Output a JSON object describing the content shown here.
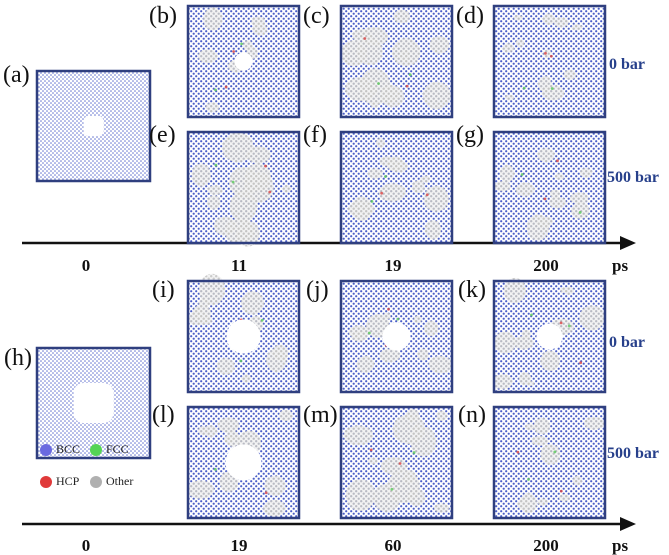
{
  "colors": {
    "frame": "#2f3f7f",
    "bcc_atom": "#4a5ec8",
    "other_atom": "#c8c8c8",
    "fcc_atom": "#58c858",
    "hcp_atom": "#d84040",
    "pressure_text": "#27408b"
  },
  "top_row": {
    "initial_label": "(a)",
    "panels": [
      "(b)",
      "(c)",
      "(d)",
      "(e)",
      "(f)",
      "(g)"
    ],
    "pressure_labels": [
      "0 bar",
      "500 bar"
    ],
    "time_ticks": [
      "0",
      "11",
      "19",
      "200"
    ],
    "time_unit": "ps",
    "damage_levels": [
      [
        0.25,
        0.55,
        0.35
      ],
      [
        0.5,
        0.45,
        0.4
      ]
    ]
  },
  "bottom_row": {
    "initial_label": "(h)",
    "panels": [
      "(i)",
      "(j)",
      "(k)",
      "(l)",
      "(m)",
      "(n)"
    ],
    "pressure_labels": [
      "0 bar",
      "500 bar"
    ],
    "time_ticks": [
      "0",
      "19",
      "60",
      "200"
    ],
    "time_unit": "ps",
    "damage_levels": [
      [
        0.45,
        0.35,
        0.4
      ],
      [
        0.4,
        0.55,
        0.3
      ]
    ]
  },
  "legend": {
    "items": [
      {
        "label": "BCC",
        "color": "#6a6ae0"
      },
      {
        "label": "FCC",
        "color": "#55d455"
      },
      {
        "label": "HCP",
        "color": "#e03a3a"
      },
      {
        "label": "Other",
        "color": "#b0b0b0"
      }
    ]
  }
}
